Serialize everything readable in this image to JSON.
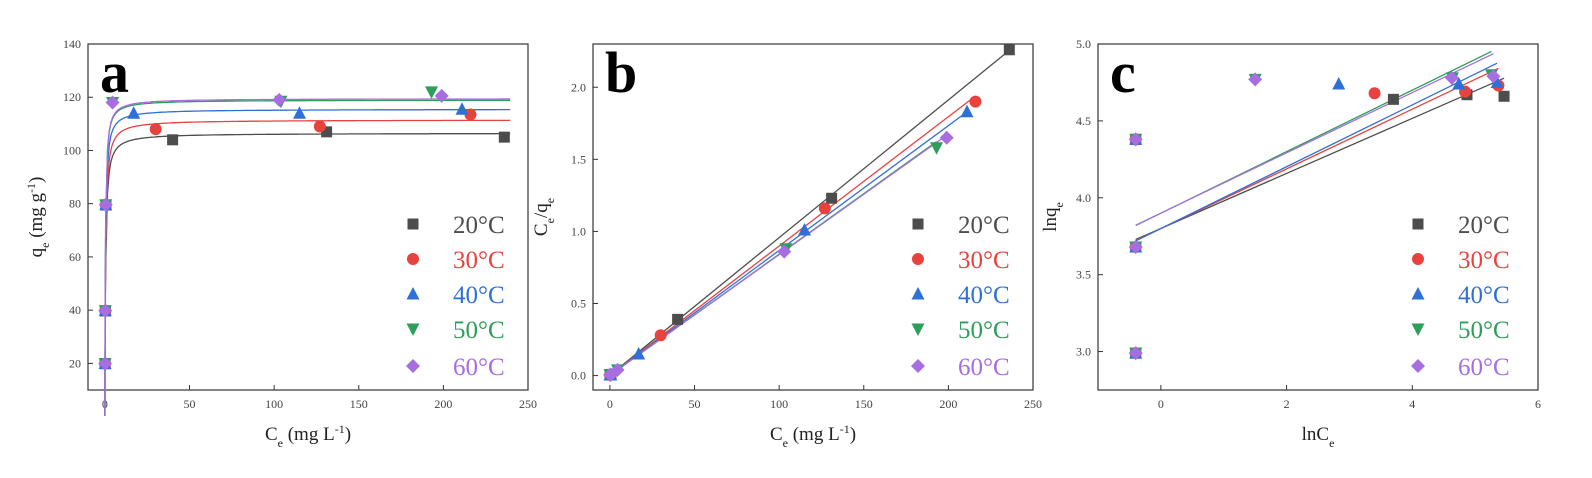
{
  "chart_data": [
    {
      "type": "scatter",
      "panel": "a",
      "xlabel": "C_e (mg L^-1)",
      "ylabel": "q_e (mg g^-1)",
      "xlim": [
        -10,
        250
      ],
      "ylim": [
        10,
        140
      ],
      "xticks": [
        0,
        50,
        100,
        150,
        200,
        250
      ],
      "yticks": [
        20,
        40,
        60,
        80,
        100,
        120,
        140
      ],
      "series": [
        {
          "name": "20°C",
          "color": "#4d4d4d",
          "marker": "square",
          "x": [
            0.12,
            0.25,
            0.6,
            40,
            131,
            236
          ],
          "y": [
            19.9,
            39.7,
            79.5,
            104,
            107,
            105
          ],
          "fit": {
            "model": "langmuir",
            "qmax": 106.5,
            "kl": 2.5
          }
        },
        {
          "name": "30°C",
          "color": "#e8423f",
          "marker": "circle",
          "x": [
            0.1,
            0.2,
            0.5,
            30,
            127,
            216
          ],
          "y": [
            19.9,
            39.8,
            79.6,
            108,
            109,
            113.5
          ],
          "fit": {
            "model": "langmuir",
            "qmax": 111.5,
            "kl": 2.5
          }
        },
        {
          "name": "40°C",
          "color": "#2f6fd8",
          "marker": "triangle-up",
          "x": [
            0.1,
            0.2,
            0.5,
            17,
            115,
            211
          ],
          "y": [
            19.9,
            39.8,
            79.6,
            114,
            114,
            115.5
          ],
          "fit": {
            "model": "langmuir",
            "qmax": 115.5,
            "kl": 3.0
          }
        },
        {
          "name": "50°C",
          "color": "#2e9e5b",
          "marker": "triangle-down",
          "x": [
            0.1,
            0.2,
            0.5,
            4.5,
            104,
            193
          ],
          "y": [
            19.9,
            39.8,
            79.6,
            118,
            118.5,
            122
          ],
          "fit": {
            "model": "langmuir",
            "qmax": 119,
            "kl": 3.5
          }
        },
        {
          "name": "60°C",
          "color": "#a66ee0",
          "marker": "diamond",
          "x": [
            0.1,
            0.2,
            0.5,
            4.5,
            103,
            199
          ],
          "y": [
            19.9,
            39.8,
            79.6,
            118,
            119,
            120.5
          ],
          "fit": {
            "model": "langmuir",
            "qmax": 119.5,
            "kl": 3.5
          }
        }
      ]
    },
    {
      "type": "scatter",
      "panel": "b",
      "xlabel": "C_e (mg L^-1)",
      "ylabel": "C_e/q_e",
      "xlim": [
        -10,
        250
      ],
      "ylim": [
        -0.1,
        2.3
      ],
      "xticks": [
        0,
        50,
        100,
        150,
        200,
        250
      ],
      "yticks": [
        0.0,
        0.5,
        1.0,
        1.5,
        2.0
      ],
      "series": [
        {
          "name": "20°C",
          "color": "#4d4d4d",
          "marker": "square",
          "x": [
            0.12,
            0.25,
            0.6,
            40,
            131,
            236
          ],
          "y": [
            0.006,
            0.006,
            0.008,
            0.39,
            1.23,
            2.26
          ],
          "fit": {
            "model": "linear",
            "slope": 0.00955,
            "intercept": 0.002,
            "x_range": [
              0,
              236
            ]
          }
        },
        {
          "name": "30°C",
          "color": "#e8423f",
          "marker": "circle",
          "x": [
            0.1,
            0.2,
            0.5,
            30,
            127,
            216
          ],
          "y": [
            0.005,
            0.005,
            0.006,
            0.28,
            1.16,
            1.9
          ],
          "fit": {
            "model": "linear",
            "slope": 0.00897,
            "intercept": 0.002,
            "x_range": [
              0,
              216
            ]
          }
        },
        {
          "name": "40°C",
          "color": "#2f6fd8",
          "marker": "triangle-up",
          "x": [
            0.1,
            0.2,
            0.5,
            17,
            115,
            211
          ],
          "y": [
            0.005,
            0.005,
            0.006,
            0.15,
            1.01,
            1.83
          ],
          "fit": {
            "model": "linear",
            "slope": 0.00866,
            "intercept": 0.002,
            "x_range": [
              0,
              211
            ]
          }
        },
        {
          "name": "50°C",
          "color": "#2e9e5b",
          "marker": "triangle-down",
          "x": [
            0.1,
            0.2,
            0.5,
            4.5,
            104,
            193
          ],
          "y": [
            0.005,
            0.005,
            0.006,
            0.04,
            0.88,
            1.58
          ],
          "fit": {
            "model": "linear",
            "slope": 0.0084,
            "intercept": 0.002,
            "x_range": [
              0,
              193
            ]
          }
        },
        {
          "name": "60°C",
          "color": "#a66ee0",
          "marker": "diamond",
          "x": [
            0.1,
            0.2,
            0.5,
            4.5,
            103,
            199
          ],
          "y": [
            0.005,
            0.005,
            0.006,
            0.04,
            0.86,
            1.65
          ],
          "fit": {
            "model": "linear",
            "slope": 0.00837,
            "intercept": 0.002,
            "x_range": [
              0,
              199
            ]
          }
        }
      ]
    },
    {
      "type": "scatter",
      "panel": "c",
      "xlabel": "lnC_e",
      "ylabel": "lnq_e",
      "xlim": [
        -1,
        6
      ],
      "ylim": [
        2.75,
        5.0
      ],
      "xticks": [
        0,
        2,
        4,
        6
      ],
      "yticks": [
        3.0,
        3.5,
        4.0,
        4.5,
        5.0
      ],
      "series": [
        {
          "name": "20°C",
          "color": "#4d4d4d",
          "marker": "square",
          "x": [
            -0.4,
            -0.4,
            -0.4,
            3.7,
            4.87,
            5.46
          ],
          "y": [
            2.99,
            3.68,
            4.38,
            4.64,
            4.67,
            4.66
          ],
          "fit": {
            "model": "linear",
            "slope": 0.179,
            "intercept": 3.8,
            "x_range": [
              -0.4,
              5.46
            ]
          }
        },
        {
          "name": "30°C",
          "color": "#e8423f",
          "marker": "circle",
          "x": [
            -0.4,
            -0.4,
            -0.4,
            3.4,
            4.84,
            5.37
          ],
          "y": [
            2.99,
            3.68,
            4.38,
            4.68,
            4.69,
            4.73
          ],
          "fit": {
            "model": "linear",
            "slope": 0.194,
            "intercept": 3.8,
            "x_range": [
              -0.4,
              5.37
            ]
          }
        },
        {
          "name": "40°C",
          "color": "#2f6fd8",
          "marker": "triangle-up",
          "x": [
            -0.4,
            -0.4,
            -0.4,
            2.83,
            4.74,
            5.35
          ],
          "y": [
            2.99,
            3.68,
            4.38,
            4.74,
            4.74,
            4.75
          ],
          "fit": {
            "model": "linear",
            "slope": 0.201,
            "intercept": 3.8,
            "x_range": [
              -0.4,
              5.35
            ]
          }
        },
        {
          "name": "50°C",
          "color": "#2e9e5b",
          "marker": "triangle-down",
          "x": [
            -0.4,
            -0.4,
            -0.4,
            1.5,
            4.64,
            5.26
          ],
          "y": [
            2.99,
            3.68,
            4.38,
            4.77,
            4.78,
            4.8
          ],
          "fit": {
            "model": "linear",
            "slope": 0.2,
            "intercept": 3.9,
            "x_range": [
              -0.4,
              5.26
            ]
          }
        },
        {
          "name": "60°C",
          "color": "#a66ee0",
          "marker": "diamond",
          "x": [
            -0.4,
            -0.4,
            -0.4,
            1.5,
            4.63,
            5.29
          ],
          "y": [
            2.99,
            3.68,
            4.38,
            4.77,
            4.78,
            4.79
          ],
          "fit": {
            "model": "linear",
            "slope": 0.196,
            "intercept": 3.9,
            "x_range": [
              -0.4,
              5.29
            ]
          }
        }
      ]
    }
  ]
}
